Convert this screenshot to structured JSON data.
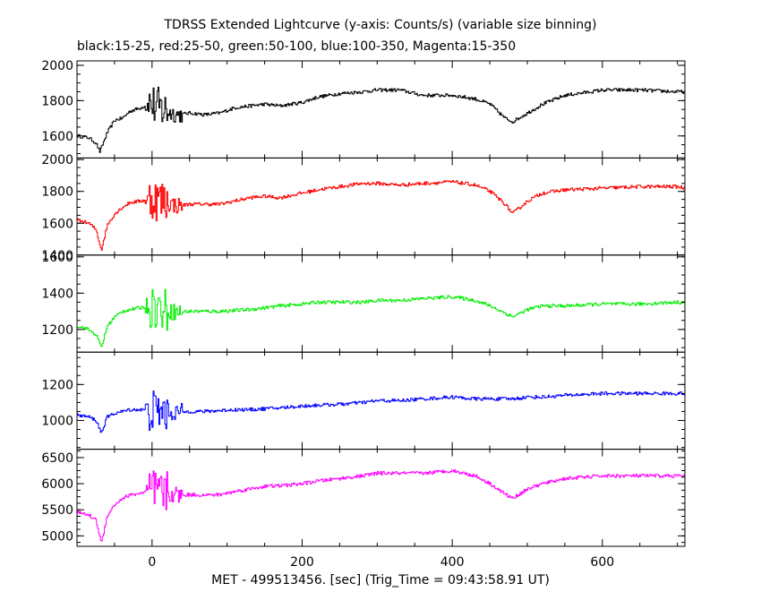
{
  "title": "TDRSS Extended Lightcurve (y-axis: Counts/s) (variable size binning)",
  "subtitle": "black:15-25, red:25-50, green:50-100, blue:100-350, Magenta:15-350",
  "chart_data": {
    "type": "line",
    "title": "TDRSS Extended Lightcurve (y-axis: Counts/s) (variable size binning)",
    "subtitle": "black:15-25, red:25-50, green:50-100, blue:100-350, Magenta:15-350",
    "xlabel": "MET - 499513456. [sec] (Trig_Time = 09:43:58.91 UT)",
    "xlim": [
      -100,
      710
    ],
    "xticks": [
      0,
      200,
      400,
      600
    ],
    "grid": false,
    "panels": [
      {
        "name": "black:15-25",
        "color": "#000000",
        "ylim": [
          1475,
          2025
        ],
        "yticks": [
          1600,
          1800,
          2000
        ],
        "x": [
          -100,
          -85,
          -75,
          -70,
          -60,
          -50,
          -40,
          -30,
          -15,
          -5,
          0,
          5,
          15,
          25,
          35,
          50,
          70,
          90,
          110,
          130,
          150,
          170,
          200,
          220,
          250,
          280,
          300,
          330,
          360,
          400,
          430,
          450,
          470,
          480,
          500,
          520,
          550,
          600,
          650,
          700,
          710
        ],
        "values": [
          1600,
          1590,
          1560,
          1510,
          1620,
          1690,
          1700,
          1740,
          1760,
          1780,
          1780,
          1760,
          1750,
          1730,
          1720,
          1730,
          1720,
          1730,
          1760,
          1770,
          1780,
          1770,
          1790,
          1820,
          1840,
          1850,
          1860,
          1860,
          1830,
          1830,
          1810,
          1780,
          1700,
          1680,
          1730,
          1780,
          1830,
          1860,
          1860,
          1850,
          1850
        ]
      },
      {
        "name": "red:25-50",
        "color": "#ff0000",
        "ylim": [
          1400,
          2010
        ],
        "yticks": [
          1400,
          1600,
          1800,
          2000
        ],
        "x": [
          -100,
          -85,
          -75,
          -68,
          -60,
          -50,
          -40,
          -30,
          -15,
          -5,
          0,
          5,
          15,
          25,
          35,
          50,
          70,
          90,
          110,
          130,
          150,
          170,
          200,
          220,
          250,
          280,
          300,
          330,
          360,
          400,
          430,
          450,
          470,
          480,
          500,
          520,
          550,
          600,
          650,
          700,
          710
        ],
        "values": [
          1620,
          1600,
          1560,
          1430,
          1590,
          1660,
          1700,
          1730,
          1740,
          1750,
          1760,
          1750,
          1740,
          1720,
          1710,
          1720,
          1720,
          1720,
          1740,
          1760,
          1770,
          1760,
          1790,
          1810,
          1830,
          1850,
          1850,
          1840,
          1850,
          1860,
          1840,
          1800,
          1720,
          1660,
          1740,
          1790,
          1810,
          1820,
          1830,
          1830,
          1820
        ]
      },
      {
        "name": "green:50-100",
        "color": "#00ee00",
        "ylim": [
          1075,
          1610
        ],
        "yticks": [
          1200,
          1400,
          1600
        ],
        "x": [
          -100,
          -85,
          -75,
          -68,
          -60,
          -50,
          -40,
          -30,
          -15,
          -5,
          0,
          5,
          15,
          25,
          35,
          50,
          70,
          90,
          110,
          130,
          150,
          170,
          200,
          220,
          250,
          280,
          300,
          330,
          360,
          400,
          430,
          450,
          470,
          480,
          500,
          520,
          550,
          600,
          650,
          700,
          710
        ],
        "values": [
          1220,
          1200,
          1170,
          1100,
          1220,
          1270,
          1300,
          1310,
          1320,
          1330,
          1330,
          1320,
          1310,
          1300,
          1295,
          1300,
          1300,
          1300,
          1305,
          1310,
          1320,
          1330,
          1340,
          1350,
          1350,
          1350,
          1360,
          1360,
          1370,
          1380,
          1360,
          1330,
          1290,
          1270,
          1310,
          1330,
          1330,
          1340,
          1340,
          1350,
          1350
        ]
      },
      {
        "name": "blue:100-350",
        "color": "#0000ff",
        "ylim": [
          840,
          1380
        ],
        "yticks": [
          1000,
          1200
        ],
        "x": [
          -100,
          -85,
          -75,
          -68,
          -60,
          -50,
          -40,
          -30,
          -15,
          -5,
          0,
          5,
          15,
          25,
          35,
          50,
          70,
          90,
          110,
          130,
          150,
          170,
          200,
          220,
          250,
          280,
          300,
          330,
          360,
          400,
          430,
          450,
          470,
          480,
          500,
          520,
          550,
          600,
          650,
          700,
          710
        ],
        "values": [
          1030,
          1020,
          1000,
          930,
          1020,
          1040,
          1050,
          1060,
          1060,
          1060,
          1050,
          1050,
          1050,
          1045,
          1045,
          1050,
          1050,
          1055,
          1060,
          1060,
          1065,
          1070,
          1080,
          1085,
          1090,
          1100,
          1110,
          1110,
          1120,
          1130,
          1120,
          1120,
          1120,
          1120,
          1130,
          1130,
          1140,
          1150,
          1150,
          1150,
          1150
        ]
      },
      {
        "name": "Magenta:15-350",
        "color": "#ff00ff",
        "ylim": [
          4800,
          6660
        ],
        "yticks": [
          5000,
          5500,
          6000,
          6500
        ],
        "x": [
          -100,
          -85,
          -75,
          -68,
          -60,
          -50,
          -40,
          -30,
          -15,
          -5,
          0,
          5,
          15,
          25,
          35,
          50,
          70,
          90,
          110,
          130,
          150,
          170,
          200,
          220,
          250,
          280,
          300,
          330,
          360,
          400,
          430,
          450,
          470,
          480,
          500,
          520,
          550,
          600,
          650,
          700,
          710
        ],
        "values": [
          5450,
          5400,
          5300,
          4850,
          5400,
          5600,
          5720,
          5780,
          5820,
          5850,
          5860,
          5840,
          5820,
          5800,
          5780,
          5790,
          5780,
          5790,
          5850,
          5900,
          5950,
          5960,
          6000,
          6050,
          6100,
          6150,
          6200,
          6200,
          6200,
          6250,
          6150,
          6000,
          5800,
          5720,
          5900,
          6000,
          6100,
          6150,
          6150,
          6150,
          6150
        ]
      }
    ]
  }
}
